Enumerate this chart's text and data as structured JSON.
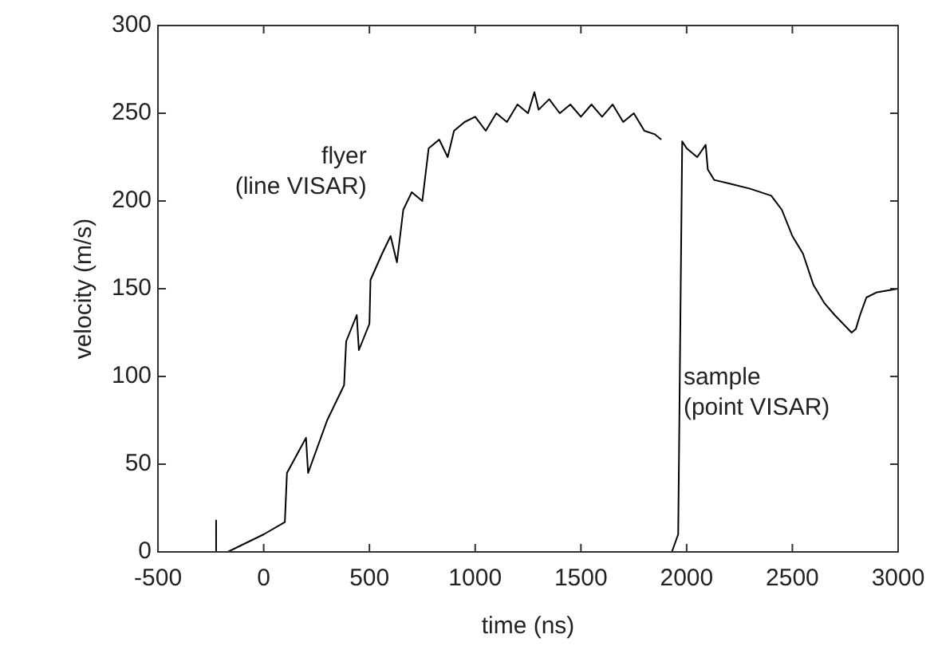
{
  "chart_data": {
    "type": "line",
    "xlabel": "time (ns)",
    "ylabel": "velocity (m/s)",
    "xlim": [
      -500,
      3000
    ],
    "xticks": [
      -500,
      0,
      500,
      1000,
      1500,
      2000,
      2500,
      3000
    ],
    "ylim": [
      0,
      300
    ],
    "yticks": [
      0,
      50,
      100,
      150,
      200,
      250,
      300
    ],
    "grid": false,
    "legend": false,
    "marker": "none",
    "line_style": "solid",
    "series": [
      {
        "name": "flyer (line VISAR)",
        "color": "#000000",
        "x": [
          -225,
          -225,
          -170,
          0,
          100,
          110,
          200,
          210,
          300,
          380,
          390,
          440,
          450,
          500,
          505,
          560,
          600,
          630,
          660,
          700,
          750,
          780,
          830,
          870,
          900,
          950,
          1000,
          1050,
          1100,
          1150,
          1200,
          1250,
          1280,
          1300,
          1350,
          1400,
          1450,
          1500,
          1550,
          1600,
          1650,
          1700,
          1750,
          1800,
          1850,
          1880
        ],
        "values": [
          18,
          0,
          0,
          10,
          17,
          45,
          65,
          45,
          75,
          95,
          120,
          135,
          115,
          130,
          155,
          170,
          180,
          165,
          195,
          205,
          200,
          230,
          235,
          225,
          240,
          245,
          248,
          240,
          250,
          245,
          255,
          250,
          262,
          252,
          258,
          250,
          255,
          248,
          255,
          248,
          255,
          245,
          250,
          240,
          238,
          235
        ]
      },
      {
        "name": "sample (point VISAR)",
        "color": "#000000",
        "x": [
          1930,
          1960,
          1979,
          2000,
          2050,
          2090,
          2100,
          2130,
          2200,
          2300,
          2400,
          2450,
          2500,
          2550,
          2600,
          2650,
          2700,
          2780,
          2800,
          2820,
          2850,
          2900,
          3000
        ],
        "values": [
          0,
          10,
          234,
          230,
          225,
          232,
          218,
          212,
          210,
          207,
          203,
          195,
          180,
          170,
          152,
          142,
          135,
          125,
          127,
          135,
          145,
          148,
          150
        ]
      }
    ]
  }
}
